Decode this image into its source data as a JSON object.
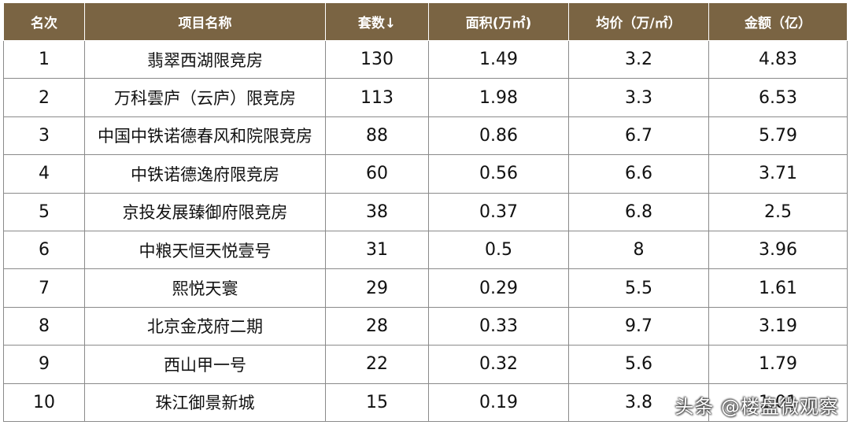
{
  "table": {
    "headers": [
      "名次",
      "项目名称",
      "套数↓",
      "面积(万㎡)",
      "均价（万/㎡）",
      "金额（亿）"
    ],
    "rows": [
      [
        "1",
        "翡翠西湖限竞房",
        "130",
        "1.49",
        "3.2",
        "4.83"
      ],
      [
        "2",
        "万科雲庐（云庐）限竞房",
        "113",
        "1.98",
        "3.3",
        "6.53"
      ],
      [
        "3",
        "中国中铁诺德春风和院限竞房",
        "88",
        "0.86",
        "6.7",
        "5.79"
      ],
      [
        "4",
        "中铁诺德逸府限竞房",
        "60",
        "0.56",
        "6.6",
        "3.71"
      ],
      [
        "5",
        "京投发展臻御府限竞房",
        "38",
        "0.37",
        "6.8",
        "2.5"
      ],
      [
        "6",
        "中粮天恒天悦壹号",
        "31",
        "0.5",
        "8",
        "3.96"
      ],
      [
        "7",
        "熙悦天寰",
        "29",
        "0.29",
        "5.5",
        "1.61"
      ],
      [
        "8",
        "北京金茂府二期",
        "28",
        "0.33",
        "9.7",
        "3.19"
      ],
      [
        "9",
        "西山甲一号",
        "22",
        "0.32",
        "5.6",
        "1.79"
      ],
      [
        "10",
        "珠江御景新城",
        "15",
        "0.19",
        "3.8",
        "1.01"
      ]
    ]
  },
  "watermark": "头条 @楼盘微观察",
  "colors": {
    "header_bg": "#7a6443",
    "header_text": "#ffffff",
    "border": "#8a8a8a"
  }
}
